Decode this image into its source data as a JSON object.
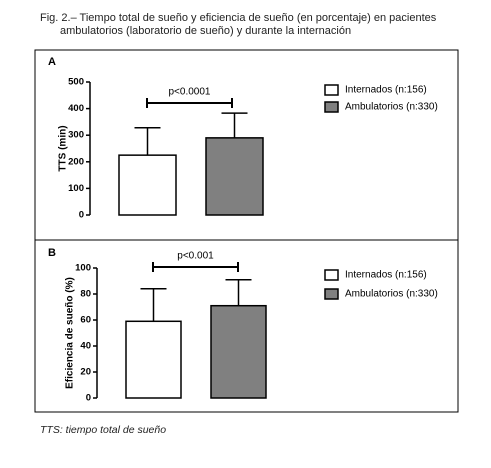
{
  "caption": [
    "Fig. 2.– Tiempo total de sueño y eficiencia de sueño (en porcentaje) en pacientes",
    "ambulatorios (laboratorio de sueño) y durante la internación"
  ],
  "note": "TTS: tiempo total de sueño",
  "chart_data": [
    {
      "type": "bar",
      "panel": "A",
      "ylabel": "TTS (min)",
      "annotation": "p<0.0001",
      "ylim": [
        0,
        500
      ],
      "yticks": [
        0,
        100,
        200,
        300,
        400,
        500
      ],
      "series": [
        {
          "name": "Internados (n:156)",
          "color": "#ffffff",
          "values": [
            225
          ],
          "errors": [
            103
          ]
        },
        {
          "name": "Ambulatorios (n:330)",
          "color": "#808080",
          "values": [
            290
          ],
          "errors": [
            93
          ]
        }
      ]
    },
    {
      "type": "bar",
      "panel": "B",
      "ylabel": "Eficiencia de sueño (%)",
      "annotation": "p<0.001",
      "ylim": [
        0,
        100
      ],
      "yticks": [
        0,
        20,
        40,
        60,
        80,
        100
      ],
      "series": [
        {
          "name": "Internados (n:156)",
          "color": "#ffffff",
          "values": [
            59
          ],
          "errors": [
            25
          ]
        },
        {
          "name": "Ambulatorios (n:330)",
          "color": "#808080",
          "values": [
            71
          ],
          "errors": [
            20
          ]
        }
      ]
    }
  ]
}
